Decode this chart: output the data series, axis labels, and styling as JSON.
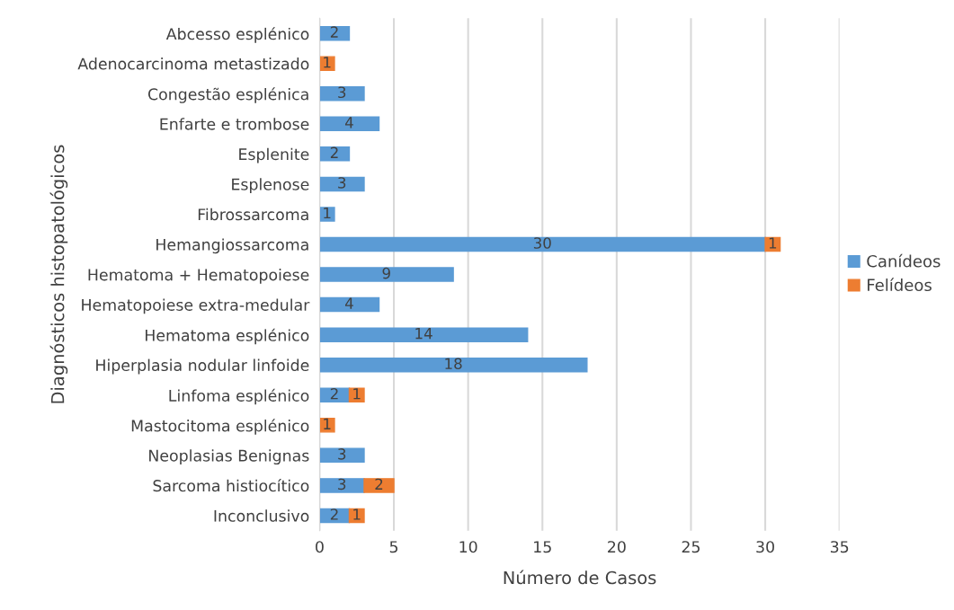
{
  "chart_data": {
    "type": "bar",
    "orientation": "horizontal",
    "stacked": true,
    "xlabel": "Número de Casos",
    "ylabel": "Diagnósticos histopatológicos",
    "categories": [
      "Abcesso esplénico",
      "Adenocarcinoma metastizado",
      "Congestão esplénica",
      "Enfarte e trombose",
      "Esplenite",
      "Esplenose",
      "Fibrossarcoma",
      "Hemangiossarcoma",
      "Hematoma + Hematopoiese",
      "Hematopoiese extra-medular",
      "Hematoma esplénico",
      "Hiperplasia nodular linfoide",
      "Linfoma esplénico",
      "Mastocitoma esplénico",
      "Neoplasias Benignas",
      "Sarcoma histiocítico",
      "Inconclusivo"
    ],
    "series": [
      {
        "name": "Canídeos",
        "color": "#5b9bd5",
        "values": [
          2,
          null,
          3,
          4,
          2,
          3,
          1,
          30,
          9,
          4,
          14,
          18,
          2,
          null,
          3,
          3,
          2
        ]
      },
      {
        "name": "Felídeos",
        "color": "#ed7d31",
        "values": [
          null,
          1,
          null,
          null,
          null,
          null,
          null,
          1,
          null,
          null,
          null,
          null,
          1,
          1,
          null,
          2,
          1
        ]
      }
    ],
    "xlim": [
      0,
      35
    ],
    "xticks": [
      0,
      5,
      10,
      15,
      20,
      25,
      30,
      35
    ],
    "grid": "x",
    "legend": "right",
    "data_labels": true
  }
}
